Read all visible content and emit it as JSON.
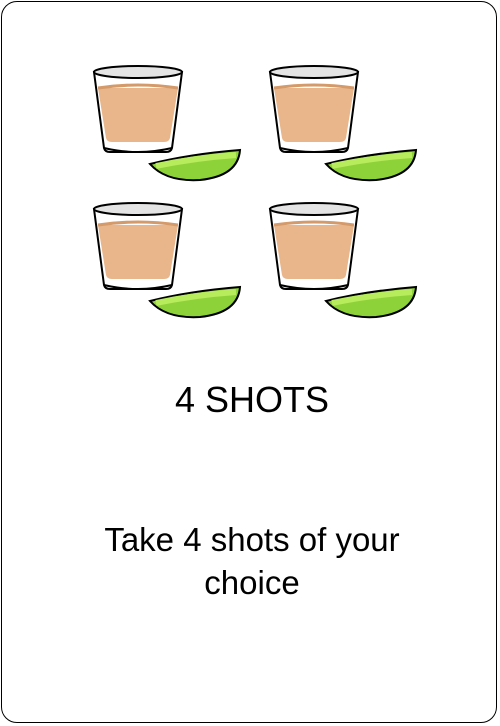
{
  "card": {
    "title": "4 SHOTS",
    "instruction": "Take 4 shots of your choice",
    "illustration": {
      "shot_count": 4,
      "icons": [
        "shot-glass-icon",
        "lime-wedge-icon"
      ],
      "colors": {
        "liquid": "#e8b68a",
        "glass_rim": "#cccccc",
        "lime_peel": "#8ed23a",
        "lime_flesh": "#b7ec5c"
      }
    }
  }
}
